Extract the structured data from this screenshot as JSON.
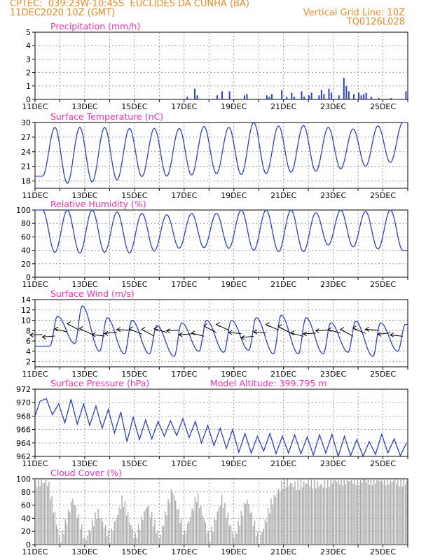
{
  "header": {
    "station": "CPTEC:  039:23W-10:45S  EUCLIDES DA CUNHA (BA)",
    "run": "11DEC2020 10Z (GMT)",
    "grid_line": "Vertical Grid Line: 10Z",
    "model": "TQ0126L028"
  },
  "colors": {
    "title": "#ff2eb4",
    "header": "#f08a24",
    "series": "#2b3fd6",
    "cloud": "#a9a9a9",
    "wind_arrow": "#000000"
  },
  "chart_data": [
    {
      "type": "bar",
      "title": "Precipitation (mm/h)",
      "ylim": [
        0,
        5
      ],
      "yticks": [
        0,
        1,
        2,
        3,
        4,
        5
      ],
      "xlim_days": [
        11,
        26
      ],
      "xticks": [
        "11DEC",
        "13DEC",
        "15DEC",
        "17DEC",
        "19DEC",
        "21DEC",
        "23DEC",
        "25DEC"
      ],
      "series": [
        {
          "x_day": [
            11.5,
            12.5,
            13.5,
            14.5,
            15.5,
            16.5,
            17.1,
            17.4,
            17.5,
            18.3,
            18.5,
            18.8,
            19.4,
            19.5,
            20.3,
            20.4,
            20.5,
            20.9,
            21.1,
            21.3,
            21.4,
            21.7,
            21.8,
            22.0,
            22.1,
            22.4,
            22.5,
            22.6,
            22.8,
            22.9,
            23.2,
            23.4,
            23.5,
            23.6,
            23.8,
            24.0,
            24.1,
            24.2,
            24.3,
            24.5,
            24.8,
            25.3,
            25.9
          ],
          "values": [
            0.02,
            0.02,
            0.02,
            0.02,
            0.02,
            0.02,
            0.2,
            0.8,
            0.3,
            0.3,
            0.6,
            0.6,
            0.3,
            0.4,
            0.3,
            0.2,
            0.4,
            0.7,
            0.2,
            0.5,
            0.2,
            0.6,
            0.2,
            0.3,
            0.5,
            0.3,
            0.7,
            0.4,
            0.8,
            0.5,
            0.3,
            1.6,
            1.0,
            0.6,
            0.4,
            0.5,
            0.3,
            0.4,
            0.5,
            0.2,
            0.1,
            0.1,
            0.6
          ]
        }
      ]
    },
    {
      "type": "line",
      "title": "Surface Temperature (nC)",
      "ylim": [
        16.5,
        30
      ],
      "yticks": [
        18,
        21,
        24,
        27,
        30
      ],
      "series": [
        {
          "min": [
            19,
            17.5,
            17.8,
            18.2,
            18.9,
            19.0,
            19.2,
            19.5,
            19.3,
            19.5,
            19.8,
            20.0,
            20.5,
            21.0,
            21.8
          ],
          "max": [
            29.0,
            29.0,
            29.0,
            28.8,
            28.8,
            28.8,
            29.2,
            29.0,
            30.0,
            29.3,
            29.4,
            29.0,
            28.7,
            29.3,
            30.0
          ]
        }
      ]
    },
    {
      "type": "line",
      "title": "Relative Humidity (%)",
      "ylim": [
        0,
        100
      ],
      "yticks": [
        0,
        20,
        40,
        60,
        80,
        100
      ],
      "series": [
        {
          "min": [
            37,
            36,
            37,
            36,
            39,
            43,
            44,
            43,
            40,
            38,
            38,
            48,
            45,
            42,
            40
          ],
          "max": [
            100,
            100,
            100,
            97,
            95,
            93,
            95,
            95,
            100,
            100,
            100,
            96,
            100,
            98,
            100
          ]
        }
      ]
    },
    {
      "type": "line",
      "title": "Surface Wind (m/s)",
      "ylim": [
        1,
        14
      ],
      "yticks": [
        2,
        4,
        6,
        8,
        10,
        12,
        14
      ],
      "series": [
        {
          "min": [
            5.0,
            5.5,
            4.0,
            3.5,
            3.5,
            3.0,
            4.0,
            3.8,
            4.2,
            3.5,
            3.5,
            3.5,
            3.8,
            3.0,
            4.0
          ],
          "max": [
            10.8,
            12.8,
            10.5,
            10.0,
            9.0,
            9.5,
            10.0,
            10.0,
            10.5,
            11.0,
            10.5,
            9.5,
            9.8,
            9.5,
            9.2
          ]
        }
      ]
    },
    {
      "type": "line",
      "title": "Surface Pressure (hPa)",
      "annotation": "Model Altitude: 399.795  m",
      "ylim": [
        962,
        972
      ],
      "yticks": [
        962,
        964,
        966,
        968,
        970,
        972
      ],
      "series": [
        {
          "x_day": [
            11,
            11.2,
            11.45,
            11.7,
            11.95,
            12.2,
            12.45,
            12.7,
            12.95,
            13.2,
            13.45,
            13.7,
            13.95,
            14.2,
            14.45,
            14.7,
            14.95,
            15.2,
            15.45,
            15.7,
            15.95,
            16.2,
            16.45,
            16.7,
            16.95,
            17.2,
            17.45,
            17.7,
            17.95,
            18.2,
            18.45,
            18.7,
            18.95,
            19.2,
            19.45,
            19.7,
            19.95,
            20.2,
            20.45,
            20.7,
            20.95,
            21.2,
            21.45,
            21.7,
            21.95,
            22.2,
            22.45,
            22.7,
            22.95,
            23.2,
            23.45,
            23.7,
            23.95,
            24.2,
            24.45,
            24.7,
            24.95,
            25.2,
            25.45,
            25.7,
            25.95
          ],
          "values": [
            968,
            970.2,
            970.6,
            968.2,
            969.8,
            967.0,
            970.5,
            966.8,
            969.8,
            966.6,
            969.5,
            966.2,
            969.0,
            965.5,
            968.6,
            964.2,
            967.8,
            964.5,
            967.4,
            964.6,
            967.2,
            965.0,
            967.3,
            965.1,
            967.6,
            964.8,
            967.2,
            964.0,
            966.6,
            963.6,
            966.2,
            963.2,
            966.0,
            962.6,
            965.4,
            962.5,
            965.0,
            962.8,
            965.4,
            962.4,
            965.0,
            962.5,
            965.2,
            962.4,
            964.9,
            962.2,
            965.2,
            962.5,
            965.3,
            962.0,
            965.0,
            962.1,
            964.5,
            962.0,
            964.2,
            962.3,
            965.3,
            962.5,
            964.6,
            962.1,
            964.0
          ]
        }
      ]
    },
    {
      "type": "bar",
      "title": "Cloud Cover (%)",
      "ylim": [
        0,
        100
      ],
      "yticks": [
        0,
        20,
        40,
        60,
        80,
        100
      ],
      "series": [
        {
          "x_day": [
            11.0,
            11.5,
            12.0,
            12.5,
            13.0,
            13.5,
            14.0,
            14.5,
            15.0,
            15.5,
            16.0,
            16.5,
            17.0,
            17.5,
            18.0,
            18.5,
            19.0,
            19.5,
            20.0,
            20.5,
            21.0,
            21.5,
            22.0,
            22.5,
            23.0,
            23.5,
            24.0,
            24.5,
            25.0,
            25.5,
            26.0
          ],
          "values": [
            95,
            95,
            5,
            70,
            5,
            50,
            10,
            70,
            10,
            60,
            10,
            85,
            15,
            75,
            10,
            70,
            10,
            70,
            5,
            65,
            95,
            90,
            95,
            90,
            98,
            98,
            98,
            98,
            98,
            97,
            95
          ]
        }
      ]
    }
  ]
}
